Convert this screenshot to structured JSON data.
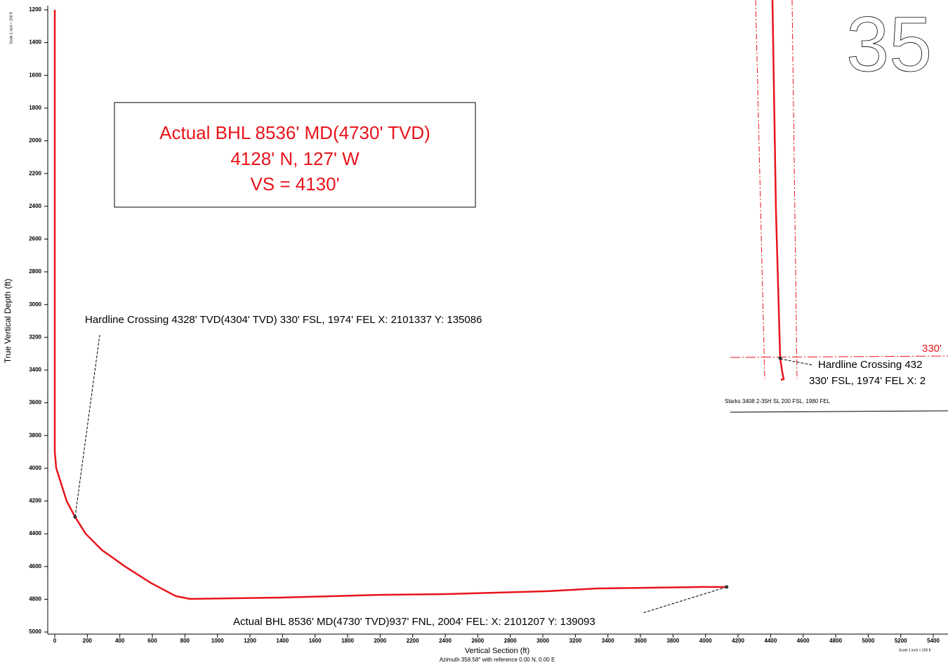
{
  "chart_data": {
    "type": "line",
    "xlabel": "Vertical Section (ft)",
    "xlabel_detail": "Azimuth 358.58° with reference 0.00 N, 0.00 E",
    "ylabel": "True Vertical Depth (ft)",
    "scale_note": "Scale 1 inch = 200 ft",
    "color": "#e8141b",
    "x": [
      0,
      0,
      9,
      73,
      125,
      190,
      290,
      432,
      590,
      742,
      829,
      1390,
      1995,
      2425,
      3030,
      3332,
      3980,
      4130
    ],
    "values": [
      1200,
      3900,
      4000,
      4200,
      4297,
      4400,
      4500,
      4600,
      4700,
      4780,
      4798,
      4790,
      4773,
      4768,
      4751,
      4734,
      4725,
      4725
    ],
    "xlim": [
      -50,
      5490
    ],
    "ylim": [
      5000,
      1200
    ],
    "y_inverted": true,
    "xticks": [
      0,
      200,
      400,
      600,
      800,
      1000,
      1200,
      1400,
      1600,
      1800,
      2000,
      2200,
      2400,
      2600,
      2800,
      3000,
      3200,
      3400,
      3600,
      3800,
      4000,
      4200,
      4400,
      4600,
      4800,
      5000,
      5200,
      5400
    ],
    "yticks": [
      1200,
      1400,
      1600,
      1800,
      2000,
      2200,
      2400,
      2600,
      2800,
      3000,
      3200,
      3400,
      3600,
      3800,
      4000,
      4200,
      4400,
      4600,
      4800,
      5000
    ],
    "annotations": [
      {
        "text": "Hardline Crossing 4328' TVD(4304' TVD) 330' FSL, 1974' FEL X: 2101337 Y: 135086",
        "x": 125,
        "y": 4297
      },
      {
        "text": "Actual BHL 8536' MD(4730' TVD)937' FNL, 2004' FEL: X: 2101207 Y: 139093",
        "x": 4130,
        "y": 4725
      }
    ],
    "box": [
      "Actual BHL 8536' MD(4730' TVD)",
      "4128' N, 127' W",
      "VS = 4130'"
    ]
  },
  "plan_view": {
    "section": "35",
    "setback": "330'",
    "hardline_line1": "Hardline Crossing 432",
    "hardline_line2": "330' FSL, 1974' FEL X: 2",
    "surface_location": "Starks 3408 2-35H SL 200 FSL, 1980 FEL"
  }
}
